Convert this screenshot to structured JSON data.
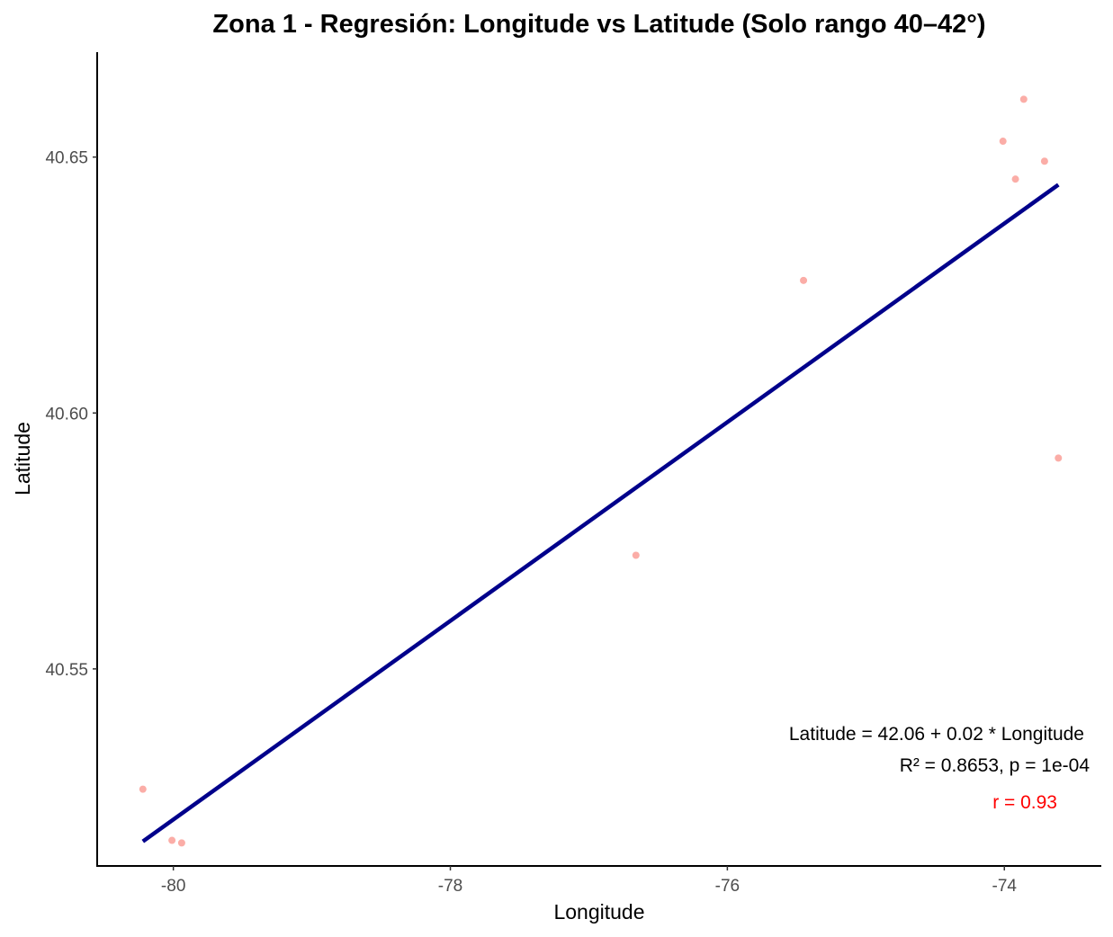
{
  "chart_data": {
    "type": "scatter",
    "title": "Zona 1 - Regresión: Longitude vs Latitude (Solo rango 40–42°)",
    "xlabel": "Longitude",
    "ylabel": "Latitude",
    "xlim": [
      -80.55,
      -73.3
    ],
    "ylim": [
      40.5115,
      40.6705
    ],
    "x_ticks": [
      -80,
      -78,
      -76,
      -74
    ],
    "x_tick_labels": [
      "-80",
      "-78",
      "-76",
      "-74"
    ],
    "y_ticks": [
      40.55,
      40.6,
      40.65
    ],
    "y_tick_labels": [
      "40.55",
      "40.60",
      "40.65"
    ],
    "grid": false,
    "points": {
      "color": "#f8766d",
      "x": [
        -80.22,
        -80.01,
        -79.94,
        -76.66,
        -75.45,
        -74.01,
        -73.86,
        -73.92,
        -73.71,
        -73.61
      ],
      "y": [
        40.5265,
        40.5165,
        40.516,
        40.5722,
        40.6259,
        40.6531,
        40.6613,
        40.6457,
        40.6492,
        40.5912
      ]
    },
    "regression_line": {
      "color": "#00008b",
      "x": [
        -80.22,
        -73.61
      ],
      "y": [
        40.5163,
        40.6446
      ]
    },
    "annotations": {
      "equation": "Latitude = 42.06 + 0.02 * Longitude",
      "stats": "R² = 0.8653, p = 1e-04",
      "correlation": "r = 0.93",
      "correlation_color": "#ff0000"
    }
  }
}
